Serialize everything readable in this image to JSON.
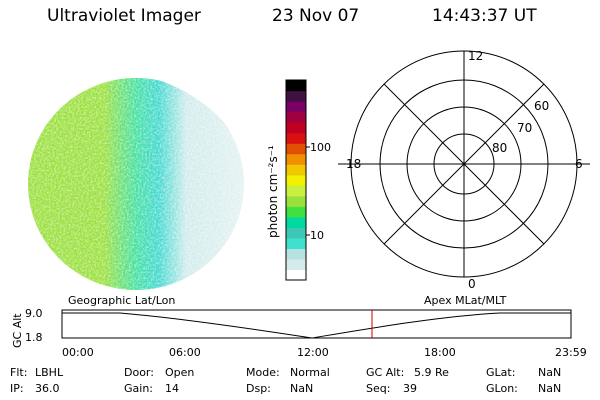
{
  "header": {
    "title": "Ultraviolet Imager",
    "date": "23 Nov 07",
    "time": "14:43:37 UT"
  },
  "colorbar": {
    "label": "photon cm⁻²s⁻¹",
    "ticks": [
      "100",
      "10"
    ],
    "scale": "log",
    "colors": [
      "#ffffff",
      "#d6ecec",
      "#b8e2e2",
      "#40e0d0",
      "#3cc8b4",
      "#00d9a0",
      "#40e040",
      "#9ae03c",
      "#c8f040",
      "#f0f000",
      "#f0c800",
      "#f09000",
      "#e05000",
      "#d81010",
      "#c00020",
      "#a00040",
      "#7a0066",
      "#401040",
      "#000000"
    ]
  },
  "polar": {
    "mlt_labels": {
      "top": "12",
      "left": "18",
      "right": "6",
      "bottom": "0"
    },
    "lat_labels": [
      "60",
      "70",
      "80"
    ],
    "ring_fractions": [
      1.0,
      0.74,
      0.5,
      0.27
    ],
    "mlt_marker": {
      "value": "6",
      "color": "#000000"
    }
  },
  "image": {
    "colors": {
      "dense": "#9ae03c",
      "mid": "#40e0a0",
      "cyan": "#40d8d0",
      "light": "#d0ecec"
    }
  },
  "timeline": {
    "left_label": "Geographic Lat/Lon",
    "right_label": "Apex MLat/MLT",
    "axis_title": "GC Alt",
    "y_ticks": [
      "9.0",
      "1.8"
    ],
    "x_ticks": [
      "00:00",
      "06:00",
      "12:00",
      "18:00",
      "23:59"
    ],
    "current_time_color": "#cc0000"
  },
  "info": {
    "filter": {
      "label": "Flt:",
      "value": "LBHL"
    },
    "door": {
      "label": "Door:",
      "value": "Open"
    },
    "mode": {
      "label": "Mode:",
      "value": "Normal"
    },
    "gc_alt": {
      "label": "GC Alt:",
      "value": "5.9 Re"
    },
    "glat": {
      "label": "GLat:",
      "value": "NaN"
    },
    "ip": {
      "label": "IP:",
      "value": "36.0"
    },
    "gain": {
      "label": "Gain:",
      "value": "14"
    },
    "dsp": {
      "label": "Dsp:",
      "value": "NaN"
    },
    "seq": {
      "label": "Seq:",
      "value": "39"
    },
    "glon": {
      "label": "GLon:",
      "value": "NaN"
    }
  }
}
